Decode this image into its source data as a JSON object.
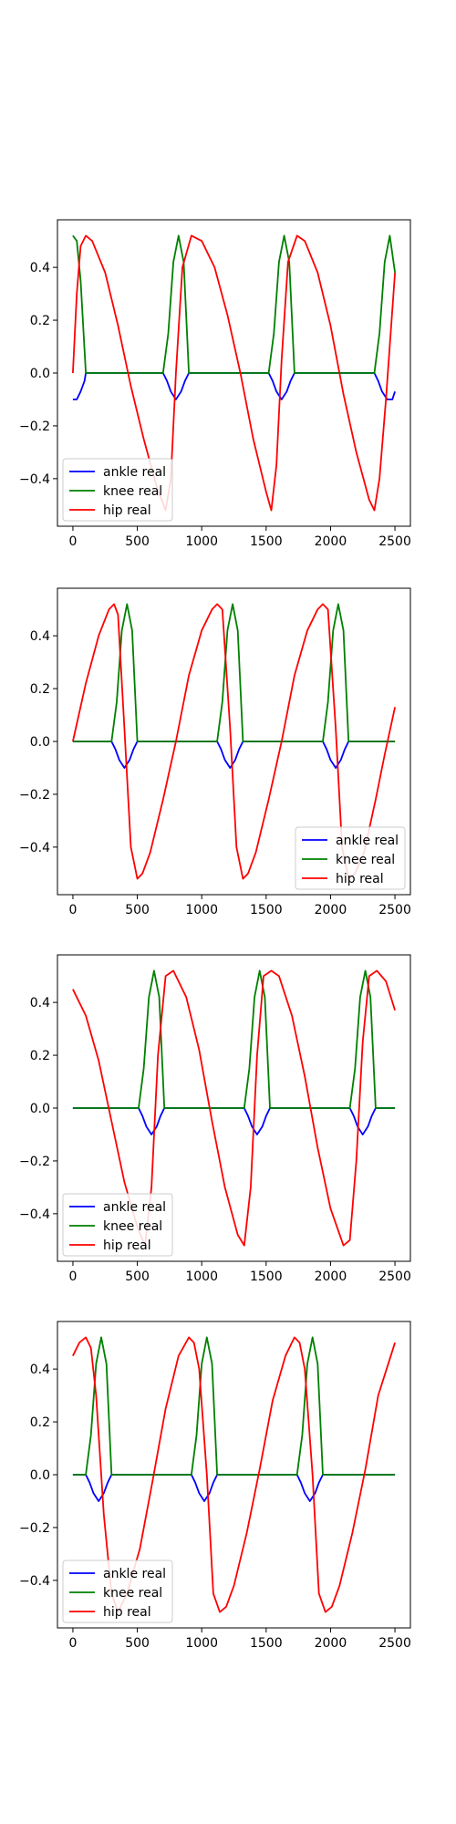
{
  "chart_data": [
    {
      "type": "line",
      "xlim": [
        -120,
        2620
      ],
      "ylim": [
        -0.58,
        0.58
      ],
      "xticks": [
        0,
        500,
        1000,
        1500,
        2000,
        2500
      ],
      "xtick_labels": [
        "0",
        "500",
        "1000",
        "1500",
        "2000",
        "2500"
      ],
      "yticks": [
        -0.4,
        -0.2,
        0.0,
        0.2,
        0.4
      ],
      "ytick_labels": [
        "−0.4",
        "−0.2",
        "0.0",
        "0.2",
        "0.4"
      ],
      "legend_location": "lower-left",
      "series": [
        {
          "name": "ankle real",
          "color": "#0000ff",
          "x": [
            0,
            30,
            60,
            90,
            100,
            700,
            730,
            760,
            800,
            840,
            870,
            900,
            1520,
            1550,
            1580,
            1620,
            1660,
            1690,
            1720,
            2340,
            2370,
            2400,
            2440,
            2480,
            2500
          ],
          "y": [
            -0.1,
            -0.1,
            -0.07,
            -0.03,
            0,
            0,
            -0.03,
            -0.07,
            -0.1,
            -0.07,
            -0.03,
            0,
            0,
            -0.03,
            -0.07,
            -0.1,
            -0.07,
            -0.03,
            0,
            0,
            -0.03,
            -0.07,
            -0.1,
            -0.1,
            -0.07
          ]
        },
        {
          "name": "knee real",
          "color": "#008000",
          "x": [
            0,
            30,
            60,
            100,
            700,
            740,
            780,
            820,
            860,
            900,
            1520,
            1560,
            1600,
            1640,
            1680,
            1720,
            2340,
            2380,
            2420,
            2460,
            2500
          ],
          "y": [
            0.52,
            0.5,
            0.35,
            0,
            0,
            0.15,
            0.42,
            0.52,
            0.42,
            0,
            0,
            0.15,
            0.42,
            0.52,
            0.42,
            0,
            0,
            0.15,
            0.42,
            0.52,
            0.38
          ]
        },
        {
          "name": "hip real",
          "color": "#ff0000",
          "x": [
            0,
            30,
            60,
            100,
            150,
            250,
            350,
            450,
            550,
            650,
            720,
            760,
            800,
            850,
            920,
            1000,
            1100,
            1200,
            1300,
            1400,
            1500,
            1540,
            1580,
            1620,
            1670,
            1740,
            1800,
            1900,
            2000,
            2100,
            2200,
            2300,
            2340,
            2380,
            2430,
            2500
          ],
          "y": [
            0,
            0.3,
            0.48,
            0.52,
            0.5,
            0.38,
            0.18,
            -0.05,
            -0.25,
            -0.43,
            -0.52,
            -0.4,
            0,
            0.4,
            0.52,
            0.5,
            0.4,
            0.22,
            0.0,
            -0.25,
            -0.45,
            -0.52,
            -0.35,
            0.05,
            0.42,
            0.52,
            0.5,
            0.38,
            0.18,
            -0.08,
            -0.3,
            -0.48,
            -0.52,
            -0.4,
            -0.1,
            0.38
          ]
        }
      ]
    },
    {
      "type": "line",
      "xlim": [
        -120,
        2620
      ],
      "ylim": [
        -0.58,
        0.58
      ],
      "xticks": [
        0,
        500,
        1000,
        1500,
        2000,
        2500
      ],
      "xtick_labels": [
        "0",
        "500",
        "1000",
        "1500",
        "2000",
        "2500"
      ],
      "yticks": [
        -0.4,
        -0.2,
        0.0,
        0.2,
        0.4
      ],
      "ytick_labels": [
        "−0.4",
        "−0.2",
        "0.0",
        "0.2",
        "0.4"
      ],
      "legend_location": "lower-right",
      "series": [
        {
          "name": "ankle real",
          "color": "#0000ff",
          "x": [
            0,
            300,
            330,
            360,
            400,
            440,
            470,
            500,
            1120,
            1150,
            1180,
            1220,
            1260,
            1290,
            1320,
            1940,
            1970,
            2000,
            2040,
            2080,
            2110,
            2140,
            2500
          ],
          "y": [
            0,
            0,
            -0.03,
            -0.07,
            -0.1,
            -0.07,
            -0.03,
            0,
            0,
            -0.03,
            -0.07,
            -0.1,
            -0.07,
            -0.03,
            0,
            0,
            -0.03,
            -0.07,
            -0.1,
            -0.07,
            -0.03,
            0,
            0
          ]
        },
        {
          "name": "knee real",
          "color": "#008000",
          "x": [
            0,
            300,
            340,
            380,
            420,
            460,
            500,
            1120,
            1160,
            1200,
            1240,
            1280,
            1320,
            1940,
            1980,
            2020,
            2060,
            2100,
            2140,
            2500
          ],
          "y": [
            0,
            0,
            0.15,
            0.42,
            0.52,
            0.42,
            0,
            0,
            0.15,
            0.42,
            0.52,
            0.42,
            0,
            0,
            0.15,
            0.42,
            0.52,
            0.42,
            0,
            0
          ]
        },
        {
          "name": "hip real",
          "color": "#ff0000",
          "x": [
            0,
            100,
            200,
            280,
            320,
            350,
            400,
            450,
            500,
            540,
            600,
            700,
            800,
            900,
            1000,
            1080,
            1120,
            1160,
            1220,
            1270,
            1320,
            1360,
            1420,
            1520,
            1620,
            1720,
            1820,
            1900,
            1940,
            1980,
            2040,
            2090,
            2140,
            2190,
            2260,
            2350,
            2420,
            2500
          ],
          "y": [
            0,
            0.22,
            0.4,
            0.5,
            0.52,
            0.48,
            0.05,
            -0.4,
            -0.52,
            -0.5,
            -0.42,
            -0.22,
            0,
            0.25,
            0.42,
            0.5,
            0.52,
            0.5,
            0.05,
            -0.4,
            -0.52,
            -0.5,
            -0.42,
            -0.22,
            0,
            0.25,
            0.42,
            0.5,
            0.52,
            0.5,
            0.05,
            -0.4,
            -0.52,
            -0.5,
            -0.42,
            -0.22,
            -0.05,
            0.13
          ]
        }
      ]
    },
    {
      "type": "line",
      "xlim": [
        -120,
        2620
      ],
      "ylim": [
        -0.58,
        0.58
      ],
      "xticks": [
        0,
        500,
        1000,
        1500,
        2000,
        2500
      ],
      "xtick_labels": [
        "0",
        "500",
        "1000",
        "1500",
        "2000",
        "2500"
      ],
      "yticks": [
        -0.4,
        -0.2,
        0.0,
        0.2,
        0.4
      ],
      "ytick_labels": [
        "−0.4",
        "−0.2",
        "0.0",
        "0.2",
        "0.4"
      ],
      "legend_location": "lower-left",
      "series": [
        {
          "name": "ankle real",
          "color": "#0000ff",
          "x": [
            0,
            510,
            540,
            570,
            610,
            650,
            680,
            710,
            1330,
            1360,
            1390,
            1430,
            1470,
            1500,
            1530,
            2150,
            2180,
            2210,
            2250,
            2290,
            2320,
            2350,
            2500
          ],
          "y": [
            0,
            0,
            -0.03,
            -0.07,
            -0.1,
            -0.07,
            -0.03,
            0,
            0,
            -0.03,
            -0.07,
            -0.1,
            -0.07,
            -0.03,
            0,
            0,
            -0.03,
            -0.07,
            -0.1,
            -0.07,
            -0.03,
            0,
            0
          ]
        },
        {
          "name": "knee real",
          "color": "#008000",
          "x": [
            0,
            510,
            550,
            590,
            630,
            670,
            710,
            1330,
            1370,
            1410,
            1450,
            1490,
            1530,
            2150,
            2190,
            2230,
            2270,
            2310,
            2350,
            2500
          ],
          "y": [
            0,
            0,
            0.15,
            0.42,
            0.52,
            0.42,
            0,
            0,
            0.15,
            0.42,
            0.52,
            0.42,
            0,
            0,
            0.15,
            0.42,
            0.52,
            0.42,
            0,
            0
          ]
        },
        {
          "name": "hip real",
          "color": "#ff0000",
          "x": [
            0,
            100,
            200,
            300,
            400,
            500,
            560,
            610,
            660,
            720,
            780,
            880,
            980,
            1080,
            1180,
            1280,
            1330,
            1380,
            1430,
            1480,
            1540,
            1600,
            1700,
            1800,
            1900,
            2000,
            2100,
            2150,
            2200,
            2250,
            2300,
            2360,
            2430,
            2500
          ],
          "y": [
            0.45,
            0.35,
            0.18,
            -0.05,
            -0.28,
            -0.45,
            -0.52,
            -0.3,
            0.2,
            0.5,
            0.52,
            0.42,
            0.22,
            -0.05,
            -0.3,
            -0.48,
            -0.52,
            -0.3,
            0.2,
            0.5,
            0.52,
            0.5,
            0.35,
            0.12,
            -0.15,
            -0.38,
            -0.52,
            -0.5,
            -0.2,
            0.25,
            0.5,
            0.52,
            0.48,
            0.37
          ]
        }
      ]
    },
    {
      "type": "line",
      "xlim": [
        -120,
        2620
      ],
      "ylim": [
        -0.58,
        0.58
      ],
      "xticks": [
        0,
        500,
        1000,
        1500,
        2000,
        2500
      ],
      "xtick_labels": [
        "0",
        "500",
        "1000",
        "1500",
        "2000",
        "2500"
      ],
      "yticks": [
        -0.4,
        -0.2,
        0.0,
        0.2,
        0.4
      ],
      "ytick_labels": [
        "−0.4",
        "−0.2",
        "0.0",
        "0.2",
        "0.4"
      ],
      "legend_location": "lower-left",
      "series": [
        {
          "name": "ankle real",
          "color": "#0000ff",
          "x": [
            0,
            100,
            130,
            160,
            200,
            240,
            270,
            300,
            920,
            950,
            980,
            1020,
            1060,
            1090,
            1120,
            1740,
            1770,
            1800,
            1840,
            1880,
            1910,
            1940,
            2500
          ],
          "y": [
            0,
            0,
            -0.03,
            -0.07,
            -0.1,
            -0.07,
            -0.03,
            0,
            0,
            -0.03,
            -0.07,
            -0.1,
            -0.07,
            -0.03,
            0,
            0,
            -0.03,
            -0.07,
            -0.1,
            -0.07,
            -0.03,
            0,
            0
          ]
        },
        {
          "name": "knee real",
          "color": "#008000",
          "x": [
            0,
            100,
            140,
            180,
            220,
            260,
            300,
            920,
            960,
            1000,
            1040,
            1080,
            1120,
            1740,
            1780,
            1820,
            1860,
            1900,
            1940,
            2500
          ],
          "y": [
            0,
            0,
            0.15,
            0.42,
            0.52,
            0.42,
            0,
            0,
            0.15,
            0.42,
            0.52,
            0.42,
            0,
            0,
            0.15,
            0.42,
            0.52,
            0.42,
            0,
            0
          ]
        },
        {
          "name": "hip real",
          "color": "#ff0000",
          "x": [
            0,
            50,
            100,
            140,
            180,
            240,
            300,
            350,
            420,
            520,
            620,
            720,
            820,
            900,
            940,
            980,
            1040,
            1090,
            1140,
            1190,
            1250,
            1350,
            1450,
            1550,
            1650,
            1720,
            1760,
            1800,
            1860,
            1910,
            1960,
            2010,
            2070,
            2170,
            2270,
            2370,
            2500
          ],
          "y": [
            0.45,
            0.5,
            0.52,
            0.48,
            0.3,
            -0.15,
            -0.45,
            -0.52,
            -0.45,
            -0.28,
            -0.02,
            0.25,
            0.45,
            0.52,
            0.5,
            0.4,
            0.0,
            -0.45,
            -0.52,
            -0.5,
            -0.42,
            -0.22,
            0.02,
            0.28,
            0.45,
            0.52,
            0.5,
            0.4,
            0.0,
            -0.45,
            -0.52,
            -0.5,
            -0.42,
            -0.22,
            0.02,
            0.3,
            0.5
          ]
        }
      ]
    }
  ]
}
